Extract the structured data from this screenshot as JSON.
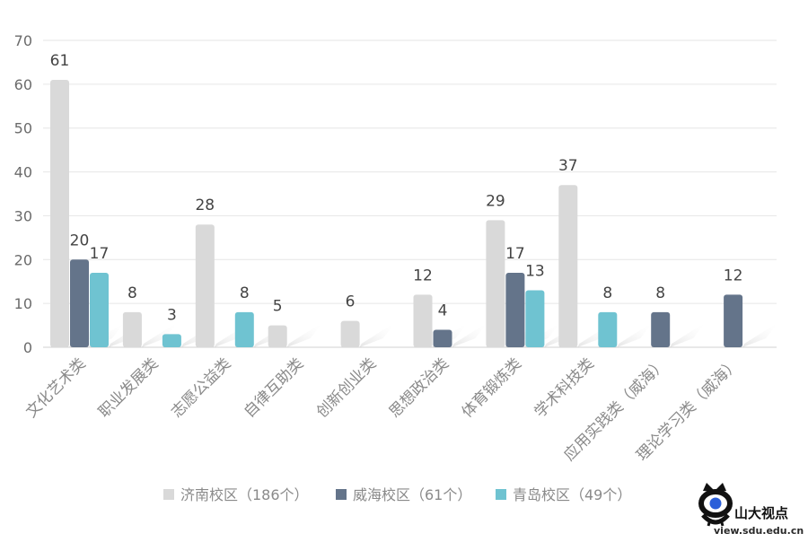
{
  "chart_data": {
    "type": "bar",
    "title": "",
    "xlabel": "",
    "ylabel": "",
    "ylim": [
      0,
      70
    ],
    "yticks": [
      0,
      10,
      20,
      30,
      40,
      50,
      60,
      70
    ],
    "grid": true,
    "legend_position": "bottom",
    "categories": [
      "文化艺术类",
      "职业发展类",
      "志愿公益类",
      "自律互助类",
      "创新创业类",
      "思想政治类",
      "体育锻炼类",
      "学术科技类",
      "应用实践类（威海）",
      "理论学习类（威海）"
    ],
    "series": [
      {
        "name": "济南校区（186个）",
        "color": "#d9d9d9",
        "values": [
          61,
          8,
          28,
          5,
          6,
          12,
          29,
          37,
          null,
          null
        ]
      },
      {
        "name": "威海校区（61个）",
        "color": "#64748a",
        "values": [
          20,
          null,
          null,
          null,
          null,
          4,
          17,
          null,
          8,
          12
        ]
      },
      {
        "name": "青岛校区（49个）",
        "color": "#6fc3d1",
        "values": [
          17,
          3,
          8,
          null,
          null,
          null,
          13,
          8,
          null,
          null
        ]
      }
    ]
  },
  "watermark": {
    "brand": "山大视点",
    "url": "view.sdu.edu.cn",
    "icon": "sdu-logo-icon"
  }
}
